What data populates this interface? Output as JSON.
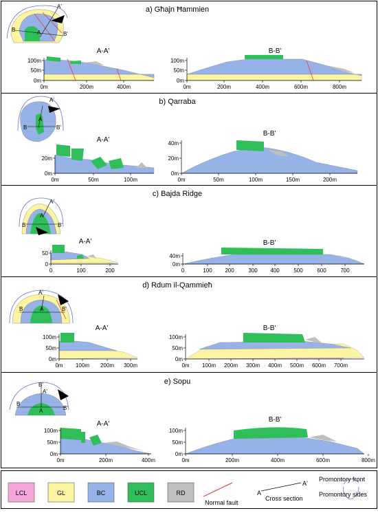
{
  "colors": {
    "LCL": "#f5a6d8",
    "GL": "#fbf5a3",
    "BC": "#96b2e6",
    "UCL": "#2fbe5a",
    "RD": "#bfbfbf",
    "fault": "#e8393a",
    "front": "#6a6ad0"
  },
  "panels": [
    {
      "id": "a",
      "title": "a) Għajn Ħammien",
      "map_labels": [
        "A'",
        "B",
        "A",
        "B'"
      ],
      "sections": [
        {
          "name": "A-A'",
          "y_ticks": [
            "100m",
            "50m",
            "0m"
          ],
          "x_ticks": [
            "0m",
            "200m",
            "400m"
          ]
        },
        {
          "name": "B-B'",
          "y_ticks": [
            "100m",
            "50m",
            "0m"
          ],
          "x_ticks": [
            "0m",
            "200m",
            "400m",
            "600m",
            "800m"
          ]
        }
      ]
    },
    {
      "id": "b",
      "title": "b) Qarraba",
      "map_labels": [
        "A'",
        "A",
        "B",
        "B'"
      ],
      "sections": [
        {
          "name": "A-A'",
          "y_ticks": [
            "20m",
            "0m"
          ],
          "x_ticks": [
            "0m",
            "50m",
            "100m"
          ]
        },
        {
          "name": "B-B'",
          "y_ticks": [
            "40m",
            "20m",
            "0m"
          ],
          "x_ticks": [
            "0m",
            "50m",
            "100m",
            "150m",
            "200m"
          ]
        }
      ]
    },
    {
      "id": "c",
      "title": "c) Bajda Ridge",
      "map_labels": [
        "A'",
        "A",
        "B",
        "B'"
      ],
      "sections": [
        {
          "name": "A-A'",
          "y_ticks": [
            "50",
            "0"
          ],
          "x_ticks": [
            "0",
            "100",
            "200"
          ]
        },
        {
          "name": "B-B'",
          "y_ticks": [
            "40m",
            "0m"
          ],
          "x_ticks": [
            "0",
            "100",
            "200",
            "300",
            "400",
            "500",
            "600",
            "700"
          ]
        }
      ]
    },
    {
      "id": "d",
      "title": "d) Rdum il-Qammieħ",
      "map_labels": [
        "A'",
        "B",
        "A",
        "B'"
      ],
      "sections": [
        {
          "name": "A-A'",
          "y_ticks": [
            "100m",
            "50m",
            "0m"
          ],
          "x_ticks": [
            "0m",
            "100m",
            "200m",
            "300m"
          ]
        },
        {
          "name": "B-B'",
          "y_ticks": [
            "100m",
            "50m",
            "0m"
          ],
          "x_ticks": [
            "0m",
            "100m",
            "200m",
            "300m",
            "400m",
            "500m",
            "600m",
            "700m"
          ]
        }
      ]
    },
    {
      "id": "e",
      "title": "e) Sopu",
      "map_labels": [
        "B'",
        "A'",
        "B",
        "A",
        "B'"
      ],
      "sections": [
        {
          "name": "A-A'",
          "y_ticks": [
            "100m",
            "50m",
            "0m"
          ],
          "x_ticks": [
            "0m",
            "200m",
            "400m"
          ]
        },
        {
          "name": "B-B'",
          "y_ticks": [
            "100m",
            "50m",
            "0m"
          ],
          "x_ticks": [
            "0m",
            "200m",
            "400m",
            "600m",
            "800m"
          ]
        }
      ]
    }
  ],
  "legend": {
    "units": [
      {
        "key": "LCL",
        "label": "LCL"
      },
      {
        "key": "GL",
        "label": "GL"
      },
      {
        "key": "BC",
        "label": "BC"
      },
      {
        "key": "UCL",
        "label": "UCL"
      },
      {
        "key": "RD",
        "label": "RD"
      }
    ],
    "normal_fault": "Normal fault",
    "cross_section": "Cross section",
    "cross_a": "A",
    "cross_a_prime": "A'",
    "front": "Promontory front",
    "sides": "Promontory sides"
  }
}
